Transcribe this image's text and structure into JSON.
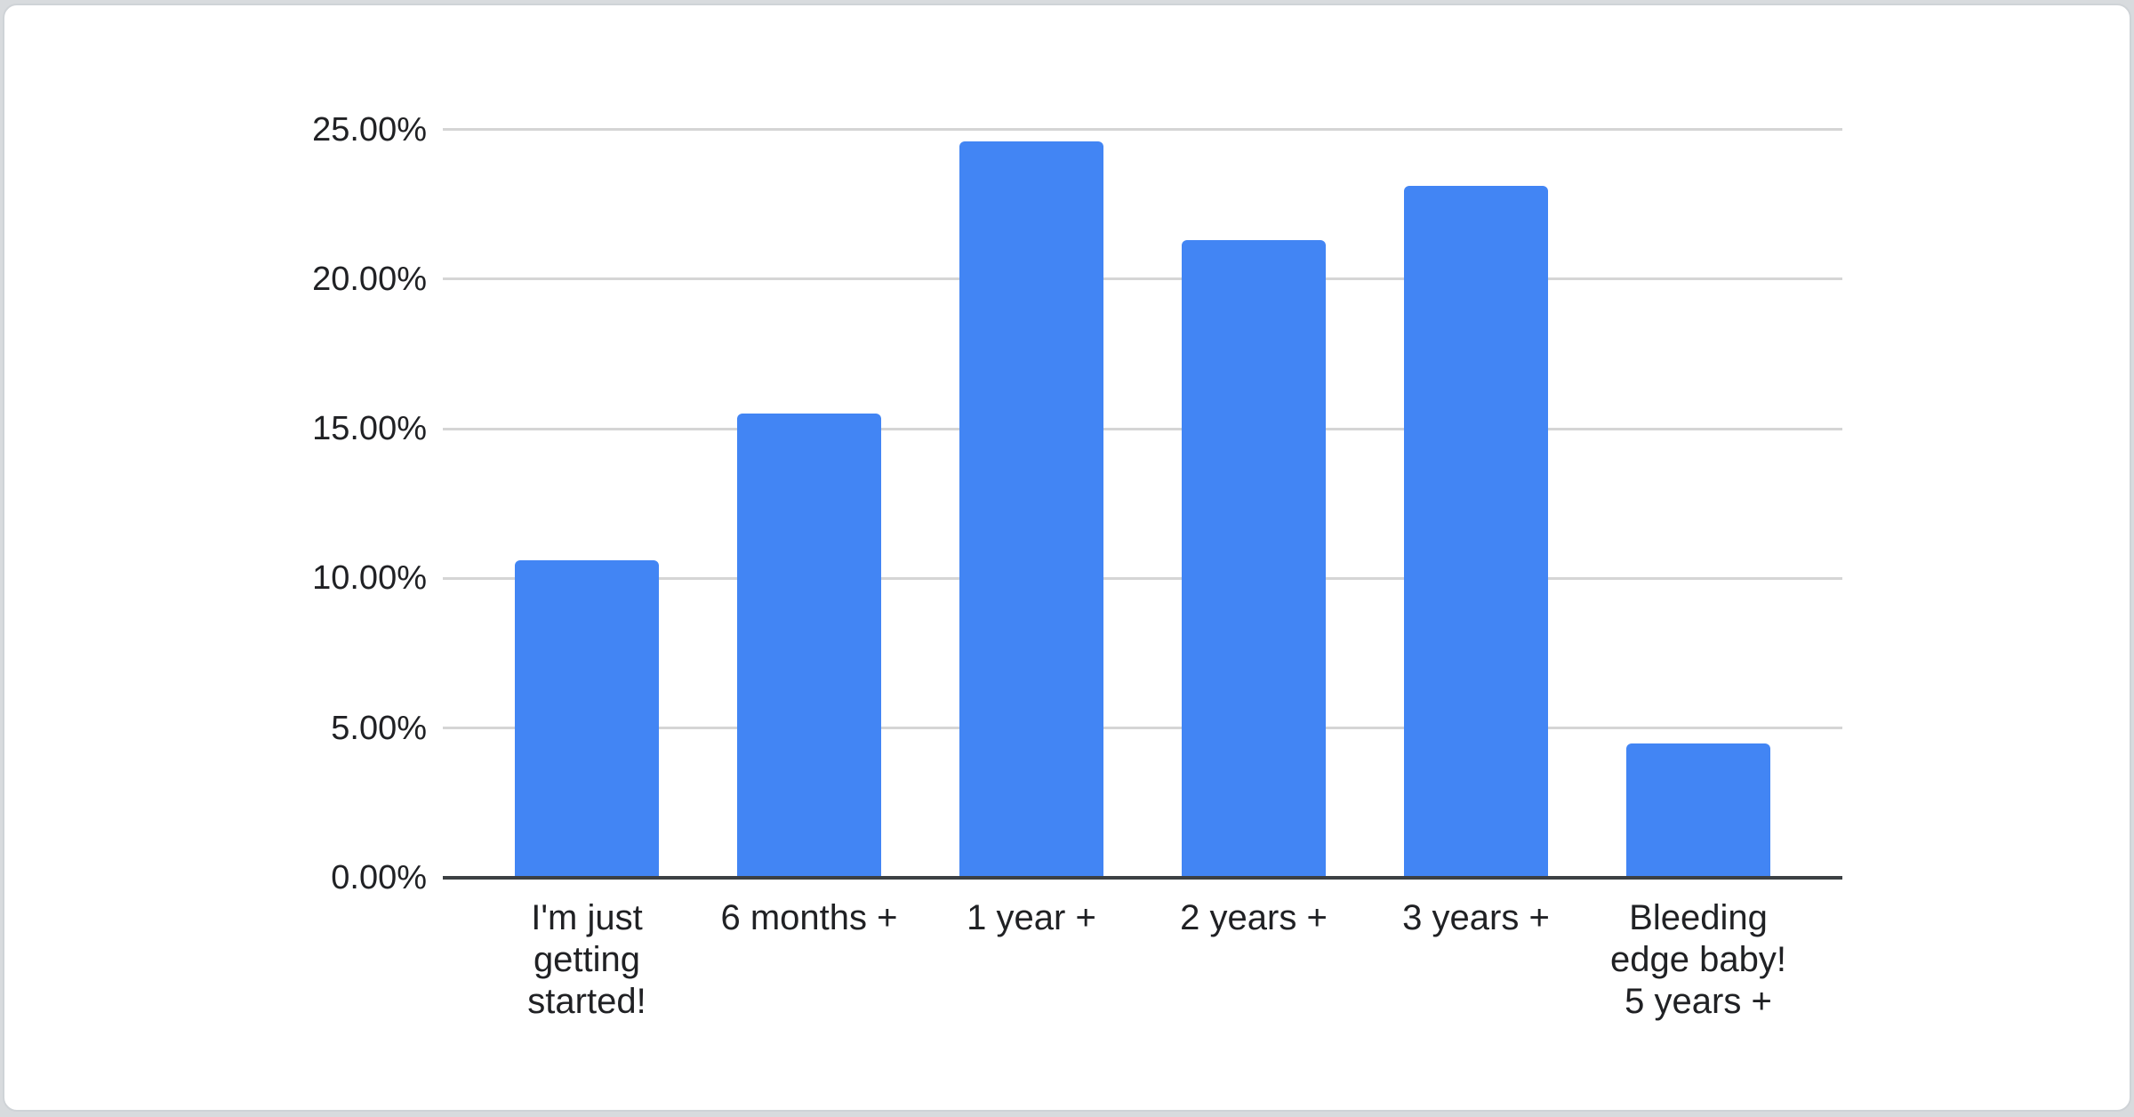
{
  "chart_data": {
    "type": "bar",
    "title": "",
    "xlabel": "",
    "ylabel": "",
    "categories": [
      "I'm just getting started!",
      "6 months +",
      "1 year +",
      "2 years +",
      "3 years +",
      "Bleeding edge baby! 5 years +"
    ],
    "values": [
      10.6,
      15.5,
      24.6,
      21.3,
      23.1,
      4.5
    ],
    "value_unit": "%",
    "ylim": [
      0,
      25
    ],
    "ytick_step": 5,
    "grid": "horizontal",
    "legend": "none",
    "bar_color": "#4285F4"
  },
  "yaxis": {
    "ticks": [
      "25.00%",
      "20.00%",
      "15.00%",
      "10.00%",
      "5.00%",
      "0.00%"
    ]
  },
  "xaxis": {
    "labels": [
      "I'm just\ngetting\nstarted!",
      "6 months +",
      "1 year +",
      "2 years +",
      "3 years +",
      "Bleeding\nedge baby!\n5 years +"
    ]
  },
  "colors": {
    "bar": "#4285F4",
    "gridline": "#d5d5d5",
    "axis_line": "#3c4043",
    "label_text": "#202124",
    "card_background": "#ffffff",
    "card_border": "#cfd3d7",
    "page_background": "#d8dbde"
  }
}
